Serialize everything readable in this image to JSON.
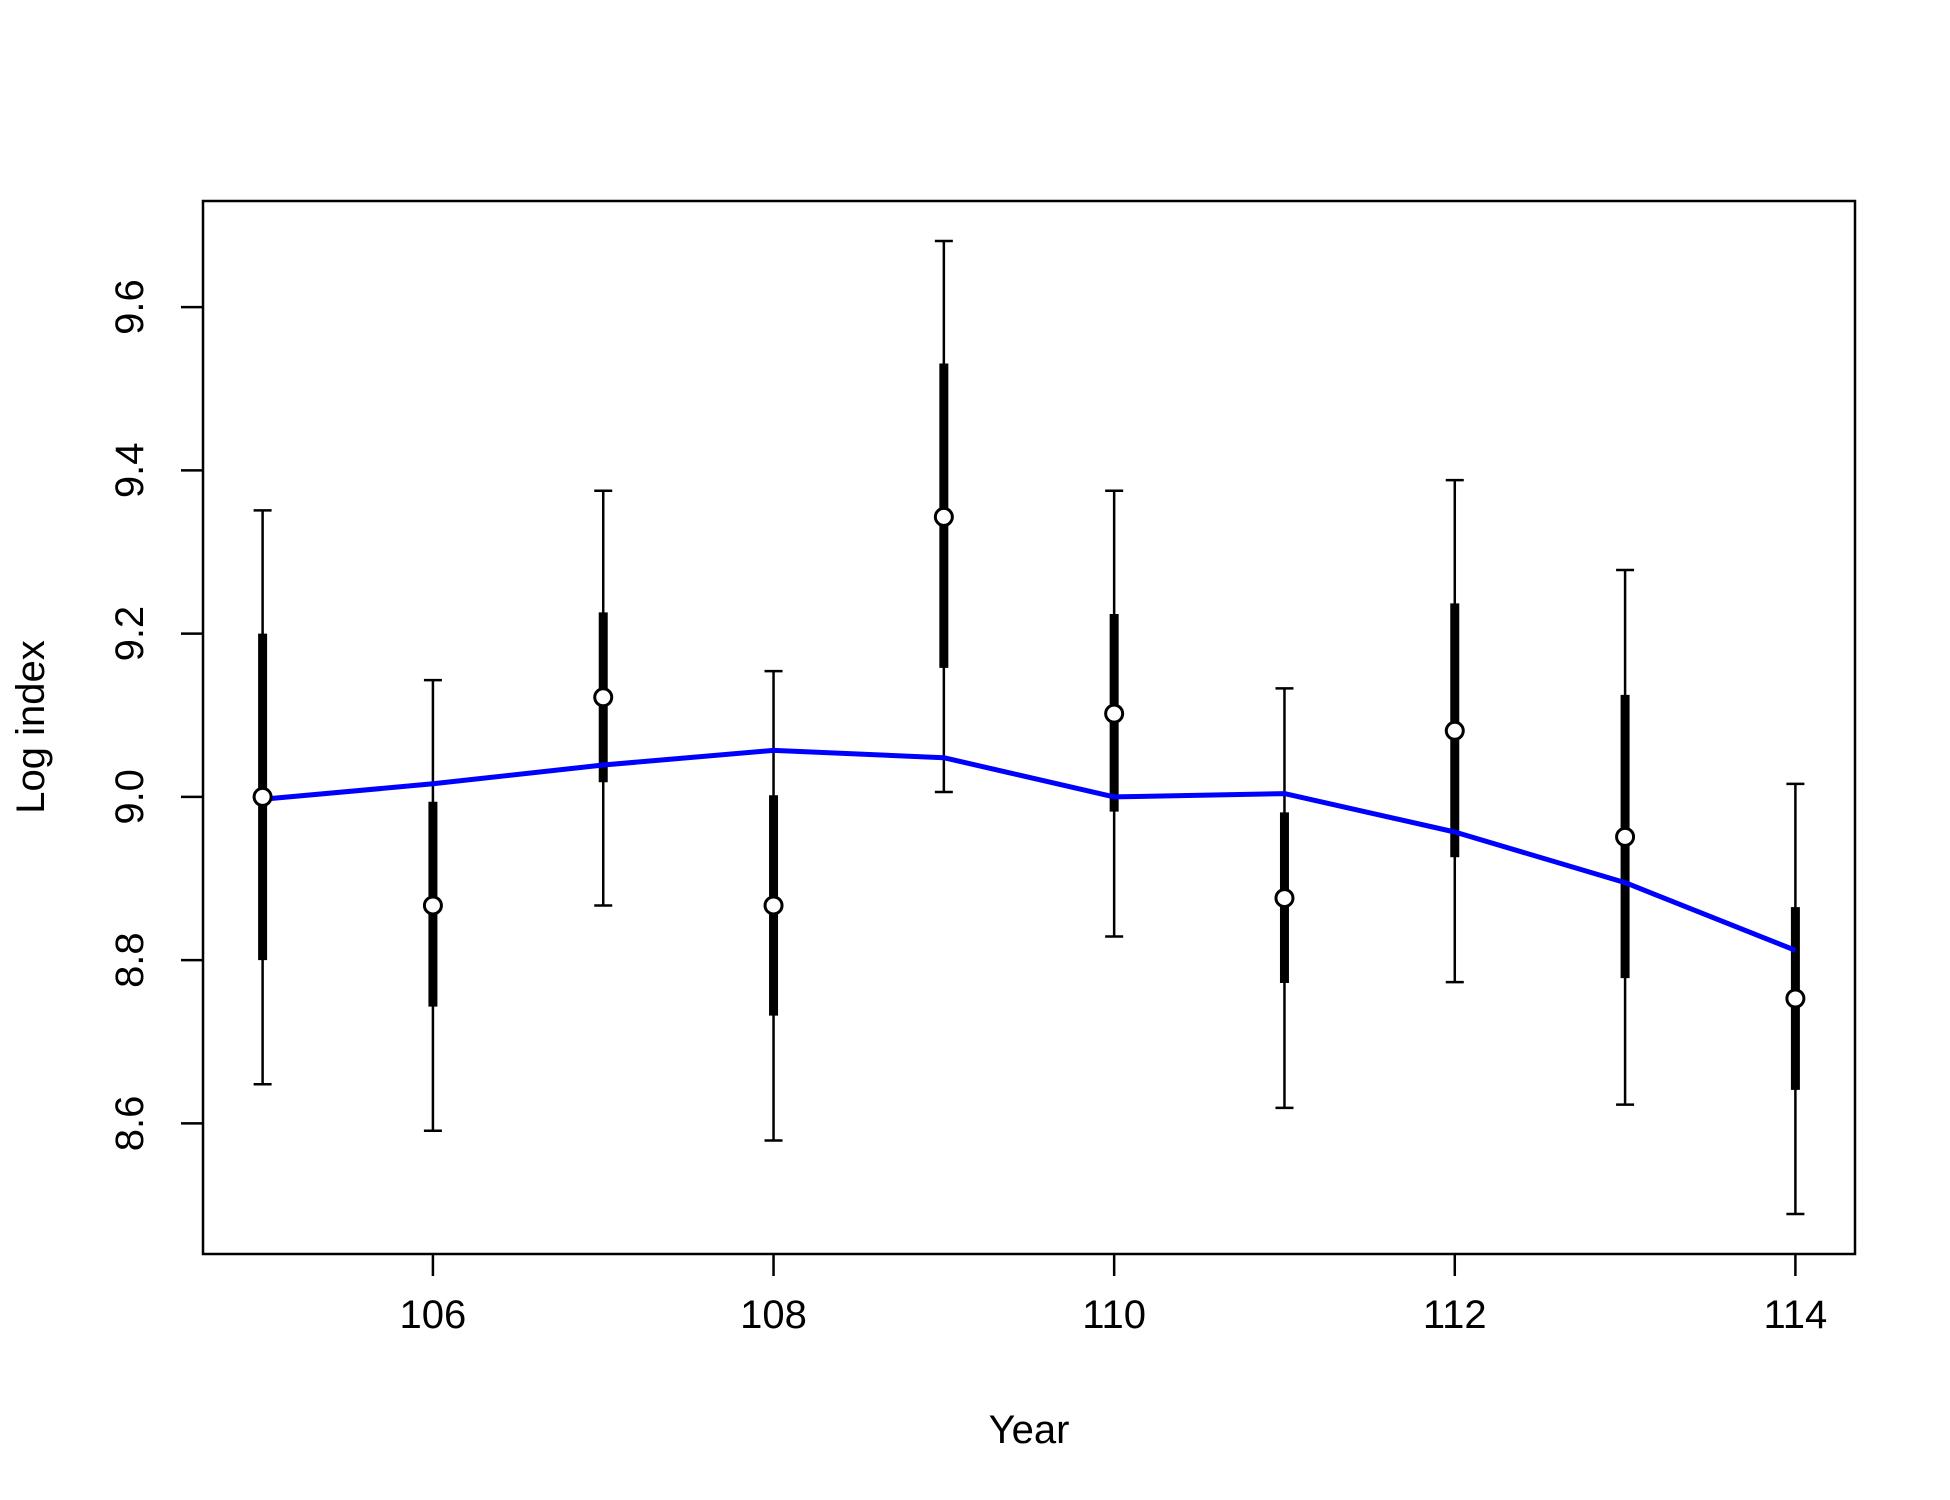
{
  "chart_data": {
    "type": "scatter",
    "title": "",
    "xlabel": "Year",
    "ylabel": "Log index",
    "xlim": [
      104.65,
      114.35
    ],
    "ylim": [
      8.44,
      9.73
    ],
    "x_ticks": [
      106,
      108,
      110,
      112,
      114
    ],
    "y_ticks": [
      8.6,
      8.8,
      9.0,
      9.2,
      9.4,
      9.6
    ],
    "grid": false,
    "legend": "none",
    "colors": {
      "observed": "#000000",
      "fitted": "#0000ff"
    },
    "series": [
      {
        "kind": "points_with_intervals",
        "x": [
          105,
          106,
          107,
          108,
          109,
          110,
          111,
          112,
          113,
          114
        ],
        "y": [
          9.0,
          8.867,
          9.122,
          8.867,
          9.343,
          9.102,
          8.876,
          9.081,
          8.951,
          8.753
        ],
        "inner_low": [
          8.8,
          8.743,
          9.018,
          8.732,
          9.158,
          8.982,
          8.772,
          8.926,
          8.778,
          8.641
        ],
        "inner_high": [
          9.2,
          8.994,
          9.226,
          9.002,
          9.531,
          9.224,
          8.981,
          9.237,
          9.125,
          8.865
        ],
        "outer_low": [
          8.648,
          8.591,
          8.867,
          8.579,
          9.006,
          8.829,
          8.619,
          8.773,
          8.623,
          8.489
        ],
        "outer_high": [
          9.351,
          9.143,
          9.375,
          9.154,
          9.681,
          9.375,
          9.133,
          9.388,
          9.278,
          9.016
        ]
      },
      {
        "kind": "line",
        "x": [
          105,
          106,
          107,
          108,
          109,
          110,
          111,
          112,
          113,
          114
        ],
        "y": [
          8.997,
          9.016,
          9.039,
          9.057,
          9.048,
          9.0,
          9.004,
          8.957,
          8.895,
          8.812
        ]
      }
    ]
  }
}
